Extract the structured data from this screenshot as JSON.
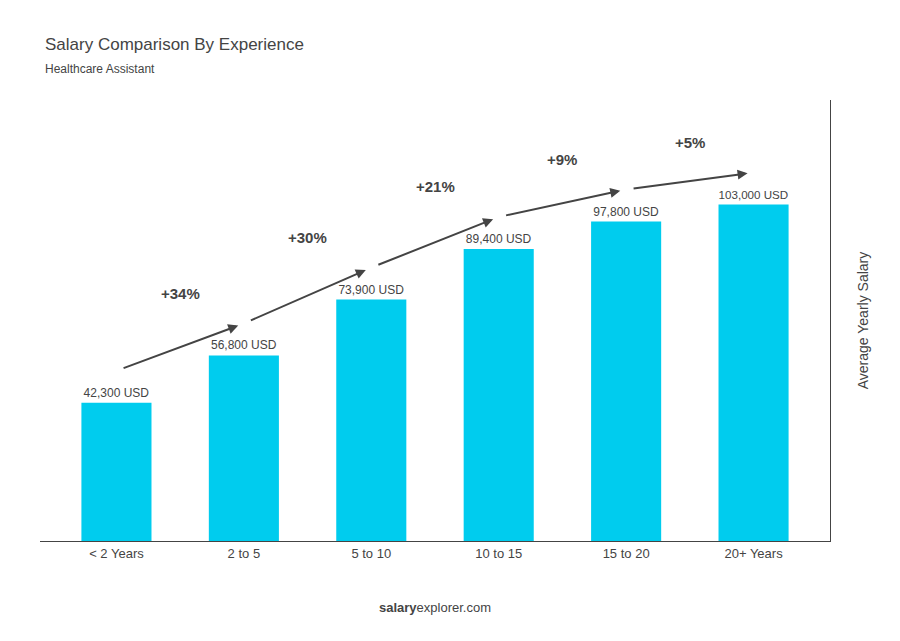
{
  "chart_data": {
    "type": "bar",
    "title": "Salary Comparison By Experience",
    "subtitle": "Healthcare Assistant",
    "ylabel": "Average Yearly Salary",
    "footer": [
      "salary",
      "explorer.com"
    ],
    "categories": [
      "< 2 Years",
      "2 to 5",
      "5 to 10",
      "10 to 15",
      "15 to 20",
      "20+ Years"
    ],
    "values": [
      42300,
      56800,
      73900,
      89400,
      97800,
      103000
    ],
    "value_labels": [
      "42,300 USD",
      "56,800 USD",
      "73,900 USD",
      "89,400 USD",
      "97,800 USD",
      "103,000 USD"
    ],
    "data_labels": true,
    "annotations": [
      "+34%",
      "+30%",
      "+21%",
      "+9%",
      "+5%"
    ],
    "color": "#00CCEE",
    "ylim": [
      0,
      135000
    ],
    "yticks": [],
    "tick_labels": "x",
    "grid": false
  }
}
